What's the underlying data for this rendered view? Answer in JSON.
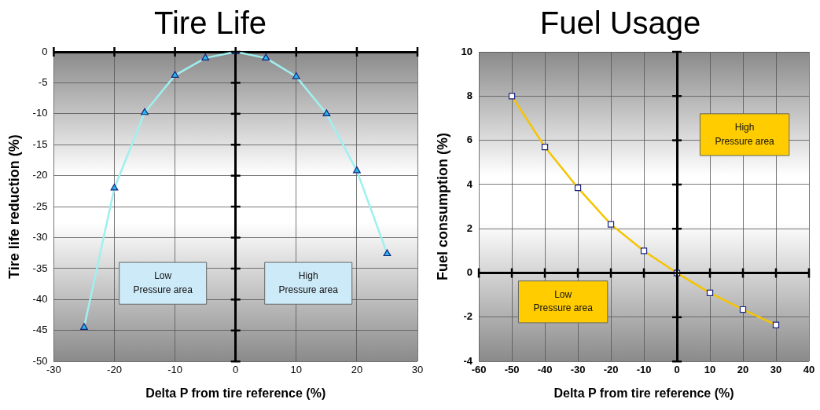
{
  "chart_data": [
    {
      "type": "line",
      "title": "Tire Life",
      "xlabel": "Delta P from tire reference (%)",
      "ylabel": "Tire life reduction (%)",
      "x": [
        -25,
        -20,
        -15,
        -10,
        -5,
        0,
        5,
        10,
        15,
        20,
        25
      ],
      "series": [
        {
          "color": "#9ff0f0",
          "values": [
            -44.5,
            -22,
            -9.8,
            -3.8,
            -1,
            0,
            -1,
            -4,
            -10,
            -19.2,
            -32.6
          ]
        }
      ],
      "xlim": [
        -30,
        30
      ],
      "xticks": [
        -30,
        -20,
        -10,
        0,
        10,
        20,
        30
      ],
      "ylim": [
        -50,
        0
      ],
      "yticks": [
        -50,
        -45,
        -40,
        -35,
        -30,
        -25,
        -20,
        -15,
        -10,
        -5,
        0
      ],
      "grid": true,
      "marker": "triangle",
      "legend": false,
      "annotations": [
        "Low\nPressure area",
        "High\nPressure area"
      ]
    },
    {
      "type": "line",
      "title": "Fuel Usage",
      "xlabel": "Delta P from tire reference (%)",
      "ylabel": "Fuel consumption (%)",
      "x": [
        -50,
        -40,
        -30,
        -20,
        -10,
        0,
        10,
        20,
        30
      ],
      "series": [
        {
          "color": "#f5c400",
          "values": [
            8,
            5.7,
            3.85,
            2.2,
            1,
            0,
            -0.9,
            -1.65,
            -2.35
          ]
        }
      ],
      "xlim": [
        -60,
        40
      ],
      "xticks": [
        -60,
        -50,
        -40,
        -30,
        -20,
        -10,
        0,
        10,
        20,
        30,
        40
      ],
      "ylim": [
        -4,
        10
      ],
      "yticks": [
        -4,
        -2,
        0,
        2,
        4,
        6,
        8,
        10
      ],
      "grid": true,
      "marker": "square",
      "legend": false,
      "annotations": [
        "Low\nPressure area",
        "High\nPressure area"
      ]
    }
  ]
}
